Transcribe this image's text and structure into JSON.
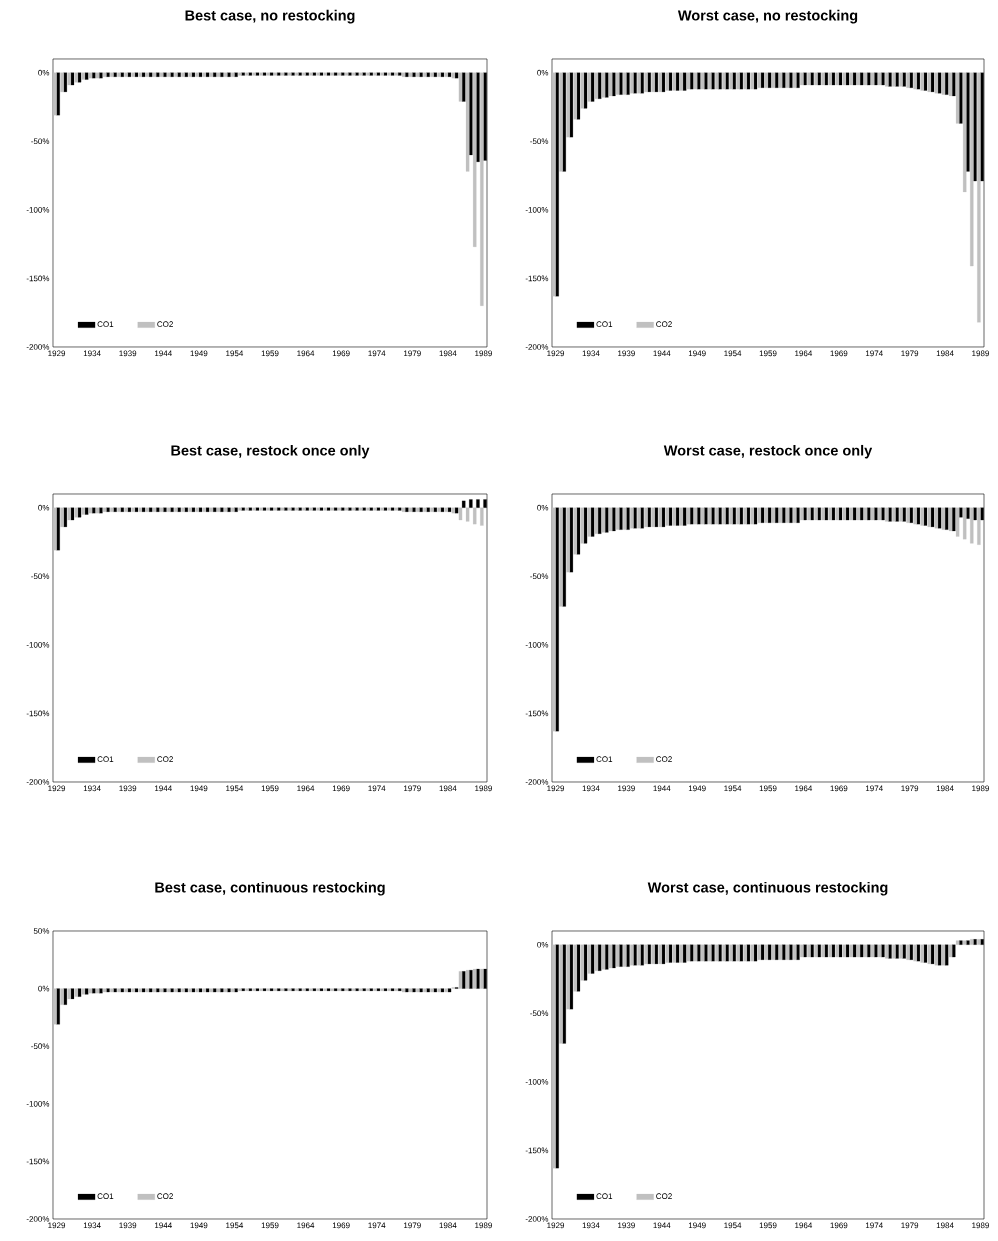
{
  "chart_data": [
    {
      "type": "bar",
      "title": "Best case, no restocking",
      "legend": "bottom left",
      "categories": [
        "1929",
        null,
        null,
        null,
        null,
        "1934",
        null,
        null,
        null,
        null,
        "1939",
        null,
        null,
        null,
        null,
        "1944",
        null,
        null,
        null,
        null,
        "1949",
        null,
        null,
        null,
        null,
        "1954",
        null,
        null,
        null,
        null,
        "1959",
        null,
        null,
        null,
        null,
        "1964",
        null,
        null,
        null,
        null,
        "1969",
        null,
        null,
        null,
        null,
        "1974",
        null,
        null,
        null,
        null,
        "1979",
        null,
        null,
        null,
        null,
        "1984",
        null,
        null,
        null,
        null,
        "1989"
      ],
      "ylim": [
        -200,
        10
      ],
      "yticks": [
        {
          "value": -200,
          "label": "-200%"
        },
        {
          "value": -150,
          "label": "-150%"
        },
        {
          "value": -100,
          "label": "-100%"
        },
        {
          "value": -50,
          "label": "-50%"
        },
        {
          "value": 0,
          "label": "0%"
        }
      ],
      "series": [
        {
          "name": "CO1",
          "color": "#000000",
          "values": [
            -31,
            -14,
            -9,
            -7,
            -5,
            -4,
            -4,
            -3,
            -3,
            -3,
            -3,
            -3,
            -3,
            -3,
            -3,
            -3,
            -3,
            -3,
            -3,
            -3,
            -3,
            -3,
            -3,
            -3,
            -3,
            -3,
            -2,
            -2,
            -2,
            -2,
            -2,
            -2,
            -2,
            -2,
            -2,
            -2,
            -2,
            -2,
            -2,
            -2,
            -2,
            -2,
            -2,
            -2,
            -2,
            -2,
            -2,
            -2,
            -2,
            -3,
            -3,
            -3,
            -3,
            -3,
            -3,
            -3,
            -4,
            -21,
            -60,
            -65,
            -64
          ]
        },
        {
          "name": "CO2",
          "color": "#c0c0c0",
          "values": [
            -31,
            -14,
            -9,
            -7,
            -5,
            -4,
            -4,
            -3,
            -3,
            -3,
            -3,
            -3,
            -3,
            -3,
            -3,
            -3,
            -3,
            -3,
            -3,
            -3,
            -3,
            -3,
            -3,
            -3,
            -3,
            -3,
            -2,
            -2,
            -2,
            -2,
            -2,
            -2,
            -2,
            -2,
            -2,
            -2,
            -2,
            -2,
            -2,
            -2,
            -2,
            -2,
            -2,
            -2,
            -2,
            -2,
            -2,
            -2,
            -2,
            -3,
            -3,
            -3,
            -3,
            -3,
            -3,
            -3,
            -4,
            -21,
            -72,
            -127,
            -170
          ]
        }
      ]
    },
    {
      "type": "bar",
      "title": "Worst case, no restocking",
      "legend": "bottom left",
      "categories": [
        "1929",
        null,
        null,
        null,
        null,
        "1934",
        null,
        null,
        null,
        null,
        "1939",
        null,
        null,
        null,
        null,
        "1944",
        null,
        null,
        null,
        null,
        "1949",
        null,
        null,
        null,
        null,
        "1954",
        null,
        null,
        null,
        null,
        "1959",
        null,
        null,
        null,
        null,
        "1964",
        null,
        null,
        null,
        null,
        "1969",
        null,
        null,
        null,
        null,
        "1974",
        null,
        null,
        null,
        null,
        "1979",
        null,
        null,
        null,
        null,
        "1984",
        null,
        null,
        null,
        null,
        "1989"
      ],
      "ylim": [
        -200,
        10
      ],
      "yticks": [
        {
          "value": -200,
          "label": "-200%"
        },
        {
          "value": -150,
          "label": "-150%"
        },
        {
          "value": -100,
          "label": "-100%"
        },
        {
          "value": -50,
          "label": "-50%"
        },
        {
          "value": 0,
          "label": "0%"
        }
      ],
      "series": [
        {
          "name": "CO1",
          "color": "#000000",
          "values": [
            -163,
            -72,
            -47,
            -34,
            -26,
            -21,
            -19,
            -18,
            -17,
            -16,
            -16,
            -15,
            -15,
            -14,
            -14,
            -14,
            -13,
            -13,
            -13,
            -12,
            -12,
            -12,
            -12,
            -12,
            -12,
            -12,
            -12,
            -12,
            -12,
            -11,
            -11,
            -11,
            -11,
            -11,
            -11,
            -9,
            -9,
            -9,
            -9,
            -9,
            -9,
            -9,
            -9,
            -9,
            -9,
            -9,
            -9,
            -10,
            -10,
            -10,
            -11,
            -12,
            -13,
            -14,
            -15,
            -16,
            -17,
            -37,
            -72,
            -79,
            -79
          ]
        },
        {
          "name": "CO2",
          "color": "#c0c0c0",
          "values": [
            -163,
            -72,
            -47,
            -34,
            -26,
            -21,
            -19,
            -18,
            -17,
            -16,
            -16,
            -15,
            -15,
            -14,
            -14,
            -14,
            -13,
            -13,
            -13,
            -12,
            -12,
            -12,
            -12,
            -12,
            -12,
            -12,
            -12,
            -12,
            -12,
            -11,
            -11,
            -11,
            -11,
            -11,
            -11,
            -9,
            -9,
            -9,
            -9,
            -9,
            -9,
            -9,
            -9,
            -9,
            -9,
            -9,
            -9,
            -10,
            -10,
            -10,
            -11,
            -12,
            -13,
            -14,
            -15,
            -16,
            -17,
            -37,
            -87,
            -141,
            -182
          ]
        }
      ]
    },
    {
      "type": "bar",
      "title": "Best case, restock once only",
      "legend": "bottom left",
      "categories": [
        "1929",
        null,
        null,
        null,
        null,
        "1934",
        null,
        null,
        null,
        null,
        "1939",
        null,
        null,
        null,
        null,
        "1944",
        null,
        null,
        null,
        null,
        "1949",
        null,
        null,
        null,
        null,
        "1954",
        null,
        null,
        null,
        null,
        "1959",
        null,
        null,
        null,
        null,
        "1964",
        null,
        null,
        null,
        null,
        "1969",
        null,
        null,
        null,
        null,
        "1974",
        null,
        null,
        null,
        null,
        "1979",
        null,
        null,
        null,
        null,
        "1984",
        null,
        null,
        null,
        null,
        "1989"
      ],
      "ylim": [
        -200,
        10
      ],
      "yticks": [
        {
          "value": -200,
          "label": "-200%"
        },
        {
          "value": -150,
          "label": "-150%"
        },
        {
          "value": -100,
          "label": "-100%"
        },
        {
          "value": -50,
          "label": "-50%"
        },
        {
          "value": 0,
          "label": "0%"
        }
      ],
      "series": [
        {
          "name": "CO1",
          "color": "#000000",
          "values": [
            -31,
            -14,
            -9,
            -7,
            -5,
            -4,
            -4,
            -3,
            -3,
            -3,
            -3,
            -3,
            -3,
            -3,
            -3,
            -3,
            -3,
            -3,
            -3,
            -3,
            -3,
            -3,
            -3,
            -3,
            -3,
            -3,
            -2,
            -2,
            -2,
            -2,
            -2,
            -2,
            -2,
            -2,
            -2,
            -2,
            -2,
            -2,
            -2,
            -2,
            -2,
            -2,
            -2,
            -2,
            -2,
            -2,
            -2,
            -2,
            -2,
            -3,
            -3,
            -3,
            -3,
            -3,
            -3,
            -3,
            -4,
            5,
            6,
            6,
            6
          ]
        },
        {
          "name": "CO2",
          "color": "#c0c0c0",
          "values": [
            -31,
            -14,
            -9,
            -7,
            -5,
            -4,
            -4,
            -3,
            -3,
            -3,
            -3,
            -3,
            -3,
            -3,
            -3,
            -3,
            -3,
            -3,
            -3,
            -3,
            -3,
            -3,
            -3,
            -3,
            -3,
            -3,
            -2,
            -2,
            -2,
            -2,
            -2,
            -2,
            -2,
            -2,
            -2,
            -2,
            -2,
            -2,
            -2,
            -2,
            -2,
            -2,
            -2,
            -2,
            -2,
            -2,
            -2,
            -2,
            -2,
            -3,
            -3,
            -3,
            -3,
            -3,
            -3,
            -3,
            -4,
            -9,
            -10,
            -12,
            -13
          ]
        }
      ]
    },
    {
      "type": "bar",
      "title": "Worst case, restock once only",
      "legend": "bottom left",
      "categories": [
        "1929",
        null,
        null,
        null,
        null,
        "1934",
        null,
        null,
        null,
        null,
        "1939",
        null,
        null,
        null,
        null,
        "1944",
        null,
        null,
        null,
        null,
        "1949",
        null,
        null,
        null,
        null,
        "1954",
        null,
        null,
        null,
        null,
        "1959",
        null,
        null,
        null,
        null,
        "1964",
        null,
        null,
        null,
        null,
        "1969",
        null,
        null,
        null,
        null,
        "1974",
        null,
        null,
        null,
        null,
        "1979",
        null,
        null,
        null,
        null,
        "1984",
        null,
        null,
        null,
        null,
        "1989"
      ],
      "ylim": [
        -200,
        10
      ],
      "yticks": [
        {
          "value": -200,
          "label": "-200%"
        },
        {
          "value": -150,
          "label": "-150%"
        },
        {
          "value": -100,
          "label": "-100%"
        },
        {
          "value": -50,
          "label": "-50%"
        },
        {
          "value": 0,
          "label": "0%"
        }
      ],
      "series": [
        {
          "name": "CO1",
          "color": "#000000",
          "values": [
            -163,
            -72,
            -47,
            -34,
            -26,
            -21,
            -19,
            -18,
            -17,
            -16,
            -16,
            -15,
            -15,
            -14,
            -14,
            -14,
            -13,
            -13,
            -13,
            -12,
            -12,
            -12,
            -12,
            -12,
            -12,
            -12,
            -12,
            -12,
            -12,
            -11,
            -11,
            -11,
            -11,
            -11,
            -11,
            -9,
            -9,
            -9,
            -9,
            -9,
            -9,
            -9,
            -9,
            -9,
            -9,
            -9,
            -9,
            -10,
            -10,
            -10,
            -11,
            -12,
            -13,
            -14,
            -15,
            -16,
            -17,
            -7,
            -8,
            -9,
            -9
          ]
        },
        {
          "name": "CO2",
          "color": "#c0c0c0",
          "values": [
            -163,
            -72,
            -47,
            -34,
            -26,
            -21,
            -19,
            -18,
            -17,
            -16,
            -16,
            -15,
            -15,
            -14,
            -14,
            -14,
            -13,
            -13,
            -13,
            -12,
            -12,
            -12,
            -12,
            -12,
            -12,
            -12,
            -12,
            -12,
            -12,
            -11,
            -11,
            -11,
            -11,
            -11,
            -11,
            -9,
            -9,
            -9,
            -9,
            -9,
            -9,
            -9,
            -9,
            -9,
            -9,
            -9,
            -9,
            -10,
            -10,
            -10,
            -11,
            -12,
            -13,
            -14,
            -15,
            -16,
            -17,
            -21,
            -23,
            -26,
            -27
          ]
        }
      ]
    },
    {
      "type": "bar",
      "title": "Best case, continuous restocking",
      "legend": "bottom left",
      "categories": [
        "1929",
        null,
        null,
        null,
        null,
        "1934",
        null,
        null,
        null,
        null,
        "1939",
        null,
        null,
        null,
        null,
        "1944",
        null,
        null,
        null,
        null,
        "1949",
        null,
        null,
        null,
        null,
        "1954",
        null,
        null,
        null,
        null,
        "1959",
        null,
        null,
        null,
        null,
        "1964",
        null,
        null,
        null,
        null,
        "1969",
        null,
        null,
        null,
        null,
        "1974",
        null,
        null,
        null,
        null,
        "1979",
        null,
        null,
        null,
        null,
        "1984",
        null,
        null,
        null,
        null,
        "1989"
      ],
      "ylim": [
        -200,
        50
      ],
      "yticks": [
        {
          "value": -200,
          "label": "-200%"
        },
        {
          "value": -150,
          "label": "-150%"
        },
        {
          "value": -100,
          "label": "-100%"
        },
        {
          "value": -50,
          "label": "-50%"
        },
        {
          "value": 0,
          "label": "0%"
        },
        {
          "value": 50,
          "label": "50%"
        }
      ],
      "series": [
        {
          "name": "CO1",
          "color": "#000000",
          "values": [
            -31,
            -14,
            -9,
            -7,
            -5,
            -4,
            -4,
            -3,
            -3,
            -3,
            -3,
            -3,
            -3,
            -3,
            -3,
            -3,
            -3,
            -3,
            -3,
            -3,
            -3,
            -3,
            -3,
            -3,
            -3,
            -3,
            -2,
            -2,
            -2,
            -2,
            -2,
            -2,
            -2,
            -2,
            -2,
            -2,
            -2,
            -2,
            -2,
            -2,
            -2,
            -2,
            -2,
            -2,
            -2,
            -2,
            -2,
            -2,
            -2,
            -3,
            -3,
            -3,
            -3,
            -3,
            -3,
            -3,
            1,
            15,
            16,
            17,
            17
          ]
        },
        {
          "name": "CO2",
          "color": "#c0c0c0",
          "values": [
            -31,
            -14,
            -9,
            -7,
            -5,
            -4,
            -4,
            -3,
            -3,
            -3,
            -3,
            -3,
            -3,
            -3,
            -3,
            -3,
            -3,
            -3,
            -3,
            -3,
            -3,
            -3,
            -3,
            -3,
            -3,
            -3,
            -2,
            -2,
            -2,
            -2,
            -2,
            -2,
            -2,
            -2,
            -2,
            -2,
            -2,
            -2,
            -2,
            -2,
            -2,
            -2,
            -2,
            -2,
            -2,
            -2,
            -2,
            -2,
            -2,
            -3,
            -3,
            -3,
            -3,
            -3,
            -3,
            -3,
            1,
            15,
            16,
            17,
            17
          ]
        }
      ]
    },
    {
      "type": "bar",
      "title": "Worst case, continuous restocking",
      "legend": "bottom left",
      "categories": [
        "1929",
        null,
        null,
        null,
        null,
        "1934",
        null,
        null,
        null,
        null,
        "1939",
        null,
        null,
        null,
        null,
        "1944",
        null,
        null,
        null,
        null,
        "1949",
        null,
        null,
        null,
        null,
        "1954",
        null,
        null,
        null,
        null,
        "1959",
        null,
        null,
        null,
        null,
        "1964",
        null,
        null,
        null,
        null,
        "1969",
        null,
        null,
        null,
        null,
        "1974",
        null,
        null,
        null,
        null,
        "1979",
        null,
        null,
        null,
        null,
        "1984",
        null,
        null,
        null,
        null,
        "1989"
      ],
      "ylim": [
        -200,
        10
      ],
      "yticks": [
        {
          "value": -200,
          "label": "-200%"
        },
        {
          "value": -150,
          "label": "-150%"
        },
        {
          "value": -100,
          "label": "-100%"
        },
        {
          "value": -50,
          "label": "-50%"
        },
        {
          "value": 0,
          "label": "0%"
        }
      ],
      "series": [
        {
          "name": "CO1",
          "color": "#000000",
          "values": [
            -163,
            -72,
            -47,
            -34,
            -26,
            -21,
            -19,
            -18,
            -17,
            -16,
            -16,
            -15,
            -15,
            -14,
            -14,
            -14,
            -13,
            -13,
            -13,
            -12,
            -12,
            -12,
            -12,
            -12,
            -12,
            -12,
            -12,
            -12,
            -12,
            -11,
            -11,
            -11,
            -11,
            -11,
            -11,
            -9,
            -9,
            -9,
            -9,
            -9,
            -9,
            -9,
            -9,
            -9,
            -9,
            -9,
            -9,
            -10,
            -10,
            -10,
            -11,
            -12,
            -13,
            -14,
            -15,
            -15,
            -9,
            3,
            3,
            4,
            4
          ]
        },
        {
          "name": "CO2",
          "color": "#c0c0c0",
          "values": [
            -163,
            -72,
            -47,
            -34,
            -26,
            -21,
            -19,
            -18,
            -17,
            -16,
            -16,
            -15,
            -15,
            -14,
            -14,
            -14,
            -13,
            -13,
            -13,
            -12,
            -12,
            -12,
            -12,
            -12,
            -12,
            -12,
            -12,
            -12,
            -12,
            -11,
            -11,
            -11,
            -11,
            -11,
            -11,
            -9,
            -9,
            -9,
            -9,
            -9,
            -9,
            -9,
            -9,
            -9,
            -9,
            -9,
            -9,
            -10,
            -10,
            -10,
            -11,
            -12,
            -13,
            -14,
            -15,
            -15,
            -9,
            3,
            3,
            4,
            4
          ]
        }
      ]
    }
  ]
}
